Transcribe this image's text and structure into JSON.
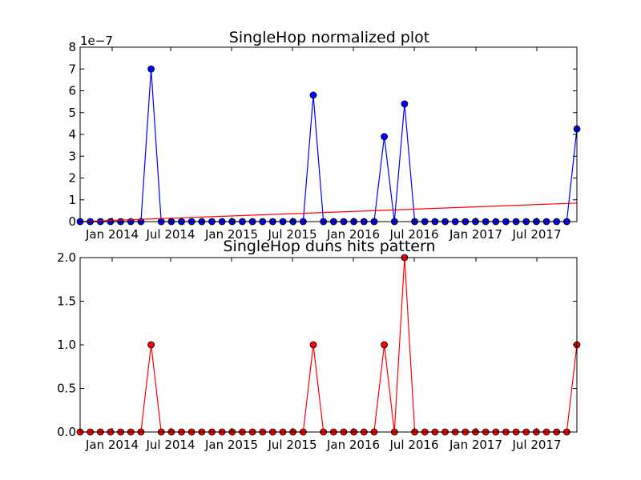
{
  "chart_data": [
    {
      "type": "line",
      "title": "SingleHop normalized plot",
      "xlabel": "",
      "ylabel": "",
      "y_offset_label": "1e−7",
      "ylim": [
        0,
        8
      ],
      "y_ticks": [
        "0",
        "1",
        "2",
        "3",
        "4",
        "5",
        "6",
        "7",
        "8"
      ],
      "x_ticks": [
        "Jan 2014",
        "Jul 2014",
        "Jan 2015",
        "Jul 2015",
        "Jan 2016",
        "Jul 2016",
        "Jan 2017",
        "Jul 2017"
      ],
      "grid": false,
      "series": [
        {
          "values": [
            0,
            0,
            0,
            0,
            0,
            0,
            0,
            7.0,
            0,
            0,
            0,
            0,
            0,
            0,
            0,
            0,
            0,
            0,
            0,
            0,
            0,
            0,
            0,
            5.8,
            0,
            0,
            0,
            0,
            0,
            0,
            3.9,
            0,
            5.4,
            0,
            0,
            0,
            0,
            0,
            0,
            0,
            0,
            0,
            0,
            0,
            0,
            0,
            0,
            0,
            0,
            4.25
          ],
          "color": "#0000ff",
          "marker": "circle"
        },
        {
          "values": [
            0,
            0.85
          ],
          "color": "#ff0000",
          "marker": "none",
          "kind": "trend"
        }
      ]
    },
    {
      "type": "line",
      "title": "SingleHop duns hits pattern",
      "xlabel": "",
      "ylabel": "",
      "ylim": [
        0,
        2
      ],
      "y_ticks": [
        "0.0",
        "0.5",
        "1.0",
        "1.5",
        "2.0"
      ],
      "x_ticks": [
        "Jan 2014",
        "Jul 2014",
        "Jan 2015",
        "Jul 2015",
        "Jan 2016",
        "Jul 2016",
        "Jan 2017",
        "Jul 2017"
      ],
      "grid": false,
      "series": [
        {
          "values": [
            0,
            0,
            0,
            0,
            0,
            0,
            0,
            1,
            0,
            0,
            0,
            0,
            0,
            0,
            0,
            0,
            0,
            0,
            0,
            0,
            0,
            0,
            0,
            1,
            0,
            0,
            0,
            0,
            0,
            0,
            1,
            0,
            2,
            0,
            0,
            0,
            0,
            0,
            0,
            0,
            0,
            0,
            0,
            0,
            0,
            0,
            0,
            0,
            0,
            1
          ],
          "color": "#ff0000",
          "marker": "circle"
        }
      ]
    }
  ]
}
